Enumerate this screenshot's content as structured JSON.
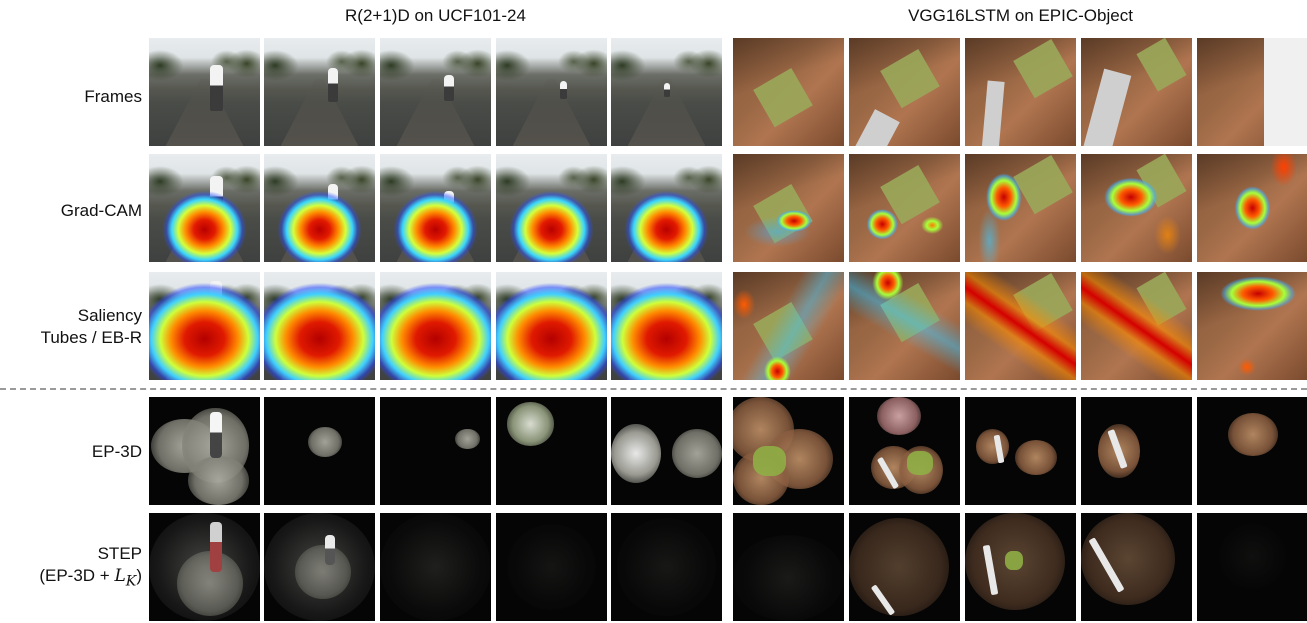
{
  "column_titles": {
    "left": "R(2+1)D on UCF101-24",
    "right": "VGG16LSTM on EPIC-Object"
  },
  "row_labels": {
    "frames": "Frames",
    "gradcam": "Grad-CAM",
    "saliency_line1": "Saliency",
    "saliency_line2": "Tubes / EB-R",
    "ep3d": "EP-3D",
    "step_line1": "STEP",
    "step_line2_prefix": "(EP-3D + ",
    "step_line2_math": "L",
    "step_line2_sub": "K",
    "step_line2_suffix": ")"
  }
}
